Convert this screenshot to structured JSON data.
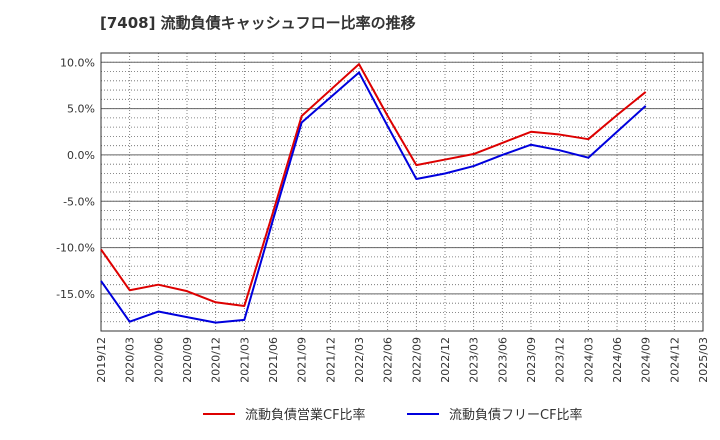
{
  "chart_data": {
    "type": "line",
    "title": "[7408]  流動負債キャッシュフロー比率の推移",
    "xlabel": "",
    "ylabel": "",
    "ylim": [
      -19,
      11
    ],
    "yticks": [
      10,
      5,
      0,
      -5,
      -10,
      -15
    ],
    "ytick_labels": [
      "10.0%",
      "5.0%",
      "0.0%",
      "-5.0%",
      "-10.0%",
      "-15.0%"
    ],
    "categories": [
      "2019/12",
      "2020/03",
      "2020/06",
      "2020/09",
      "2020/12",
      "2021/03",
      "2021/06",
      "2021/09",
      "2021/12",
      "2022/03",
      "2022/06",
      "2022/09",
      "2022/12",
      "2023/03",
      "2023/06",
      "2023/09",
      "2023/12",
      "2024/03",
      "2024/06",
      "2024/09",
      "2024/12",
      "2025/03"
    ],
    "grid": true,
    "legend_position": "bottom",
    "series": [
      {
        "name": "流動負債営業CF比率",
        "color": "#dd0000",
        "values": [
          -10.2,
          -14.6,
          -14.0,
          -14.7,
          -15.9,
          -16.3,
          -6.2,
          4.2,
          7.0,
          9.8,
          4.2,
          -1.1,
          -0.5,
          0.1,
          1.3,
          2.5,
          2.2,
          1.7,
          4.3,
          6.8,
          null,
          null
        ]
      },
      {
        "name": "流動負債フリーCF比率",
        "color": "#0000dd",
        "values": [
          -13.6,
          -18.0,
          -16.9,
          -17.5,
          -18.1,
          -17.8,
          -7.0,
          3.5,
          6.2,
          8.9,
          3.1,
          -2.6,
          -2.0,
          -1.2,
          0.0,
          1.1,
          0.5,
          -0.3,
          2.5,
          5.3,
          null,
          null
        ]
      }
    ]
  }
}
